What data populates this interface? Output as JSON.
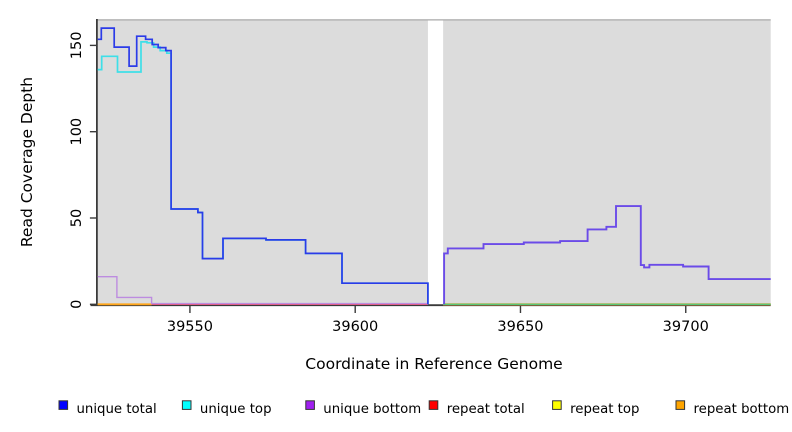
{
  "chart_data": {
    "type": "line",
    "step": true,
    "title": "",
    "xlabel": "Coordinate in Reference Genome",
    "ylabel": "Read Coverage Depth",
    "xlim": [
      39522.1,
      39725.7
    ],
    "ylim": [
      0,
      165
    ],
    "grid": false,
    "plot_bg": "#dcdcdc",
    "plot_top_border": "#a9a9a9",
    "axis_color": "#3a3a3a",
    "gap_no_data": {
      "from": 39622.0,
      "to": 39626.6
    },
    "x_ticks": [
      {
        "value": 39550,
        "label": "39550"
      },
      {
        "value": 39600,
        "label": "39600"
      },
      {
        "value": 39650,
        "label": "39650"
      },
      {
        "value": 39700,
        "label": "39700"
      }
    ],
    "y_ticks": [
      {
        "value": 0,
        "label": "0"
      },
      {
        "value": 50,
        "label": "50"
      },
      {
        "value": 100,
        "label": "100"
      },
      {
        "value": 150,
        "label": "150"
      }
    ],
    "legend": [
      {
        "label": "unique total",
        "color": "#0000ff"
      },
      {
        "label": "unique top",
        "color": "#00ffff"
      },
      {
        "label": "unique bottom",
        "color": "#a020f0"
      },
      {
        "label": "repeat total",
        "color": "#ff0000"
      },
      {
        "label": "repeat top",
        "color": "#ffff00"
      },
      {
        "label": "repeat bottom",
        "color": "#ffa500"
      }
    ],
    "series_notes": [
      "Left block (39522-39622): coverage is mostly top-strand; unique top ~= unique total, unique bottom drops 16->4->0, repeat lines ~0.",
      "Right block (39627-39726): coverage is mostly bottom-strand; unique bottom ~= unique total (violet line), unique top ~0 over repeat lines at 0 (green blend at baseline).",
      "White vertical band ~39622-39627 = no-data gap between the two shaded regions."
    ],
    "render_paths": [
      {
        "name": "repeat-top-baseline",
        "series": "repeat top",
        "color": "#ece84a",
        "width": 1.4,
        "points": [
          [
            39522.1,
            0
          ],
          [
            39622.0,
            0
          ]
        ]
      },
      {
        "name": "repeat-bottom-left",
        "series": "repeat bottom",
        "color": "#ffa519",
        "width": 1.8,
        "points": [
          [
            39522.1,
            0
          ],
          [
            39538.4,
            0
          ]
        ]
      },
      {
        "name": "repeat-total-left",
        "series": "repeat total",
        "color": "#e8506e",
        "width": 1.4,
        "points": [
          [
            39538.4,
            0
          ],
          [
            39622.0,
            0
          ]
        ]
      },
      {
        "name": "repeat-bottom-right",
        "series": "repeat bottom",
        "color": "#e8a23c",
        "width": 2.2,
        "points": [
          [
            39626.6,
            0
          ],
          [
            39725.7,
            0
          ]
        ]
      },
      {
        "name": "unique-top-right-baseline",
        "series": "unique top",
        "color": "#58c878",
        "width": 1.4,
        "points": [
          [
            39626.6,
            0
          ],
          [
            39725.7,
            0
          ]
        ]
      },
      {
        "name": "unique-bottom-left",
        "series": "unique bottom",
        "color": "#bd8ce0",
        "width": 1.4,
        "points": [
          [
            39522.1,
            16
          ],
          [
            39527.9,
            4
          ],
          [
            39538.4,
            0.4
          ],
          [
            39622.0,
            0.4
          ]
        ]
      },
      {
        "name": "unique-top-left",
        "series": "unique top",
        "color": "#3edfe8",
        "width": 1.7,
        "points": [
          [
            39522.1,
            136
          ],
          [
            39523.3,
            143.7
          ],
          [
            39528.1,
            134.6
          ],
          [
            39535.2,
            152
          ],
          [
            39537,
            151.5
          ],
          [
            39539,
            149
          ],
          [
            39541,
            147
          ],
          [
            39543,
            145.5
          ],
          [
            39544.3,
            55.2
          ],
          [
            39552.4,
            53.2
          ],
          [
            39553.8,
            26.5
          ],
          [
            39560,
            38.2
          ],
          [
            39573,
            37.3
          ],
          [
            39585,
            29.5
          ],
          [
            39596,
            12.2
          ],
          [
            39622,
            0
          ]
        ]
      },
      {
        "name": "unique-total-left",
        "series": "unique total",
        "color": "#2b3be8",
        "width": 1.7,
        "points": [
          [
            39522.1,
            153.5
          ],
          [
            39523.2,
            160
          ],
          [
            39527.1,
            149
          ],
          [
            39531.6,
            138
          ],
          [
            39533.9,
            155.3
          ],
          [
            39536.6,
            153.5
          ],
          [
            39538.6,
            150.5
          ],
          [
            39540.4,
            148.7
          ],
          [
            39542.7,
            147
          ],
          [
            39544.3,
            55.2
          ],
          [
            39552.4,
            53.2
          ],
          [
            39553.8,
            26.5
          ],
          [
            39560,
            38.2
          ],
          [
            39573,
            37.3
          ],
          [
            39585,
            29.5
          ],
          [
            39596,
            12.2
          ],
          [
            39622,
            0
          ]
        ]
      },
      {
        "name": "unique-bottom-and-total-right",
        "series": "unique bottom + unique total (overlapping)",
        "color": "#6b4be8",
        "width": 1.9,
        "points": [
          [
            39626.9,
            0
          ],
          [
            39626.9,
            29.5
          ],
          [
            39628,
            32.4
          ],
          [
            39638.8,
            34.9
          ],
          [
            39651,
            35.8
          ],
          [
            39662,
            36.6
          ],
          [
            39670.3,
            43.4
          ],
          [
            39676,
            44.9
          ],
          [
            39678.9,
            56.9
          ],
          [
            39686.4,
            22.7
          ],
          [
            39687.4,
            21.4
          ],
          [
            39689,
            22.9
          ],
          [
            39699.2,
            21.9
          ],
          [
            39706.9,
            14.6
          ],
          [
            39725.7,
            14.6
          ]
        ]
      }
    ]
  }
}
